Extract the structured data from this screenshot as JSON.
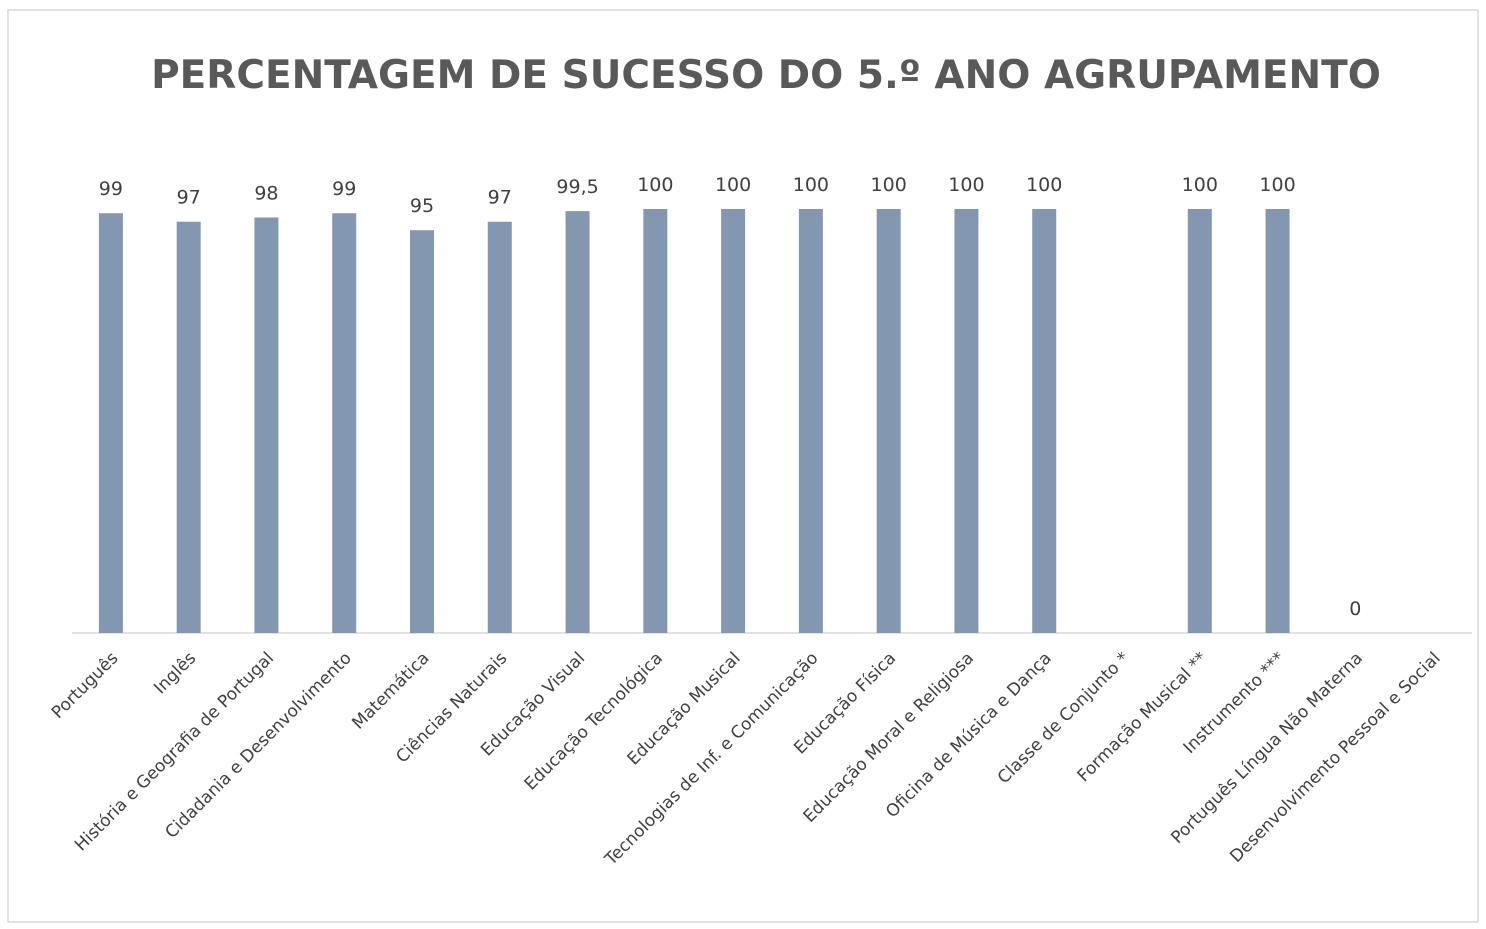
{
  "chart_data": {
    "type": "bar",
    "title": "PERCENTAGEM DE SUCESSO DO 5.º ANO AGRUPAMENTO",
    "categories": [
      "Português",
      "Inglês",
      "História e Geografia de Portugal",
      "Cidadania e Desenvolvimento",
      "Matemática",
      "Ciências Naturais",
      "Educação Visual",
      "Educação Tecnológica",
      "Educação Musical",
      "Tecnologias de Inf. e Comunicação",
      "Educação Física",
      "Educação Moral e Religiosa",
      "Oficina de Música e Dança",
      "Classe de Conjunto *",
      "Formação Musical **",
      "Instrumento ***",
      "Português Língua Não Materna",
      "Desenvolvimento Pessoal e Social"
    ],
    "values": [
      99,
      97,
      98,
      99,
      95,
      97,
      99.5,
      100,
      100,
      100,
      100,
      100,
      100,
      null,
      100,
      100,
      0,
      null
    ],
    "value_labels": [
      "99",
      "97",
      "98",
      "99",
      "95",
      "97",
      "99,5",
      "100",
      "100",
      "100",
      "100",
      "100",
      "100",
      null,
      "100",
      "100",
      "0",
      null
    ],
    "color": "#8497b0",
    "ylim": [
      0,
      100
    ],
    "grid": false
  }
}
